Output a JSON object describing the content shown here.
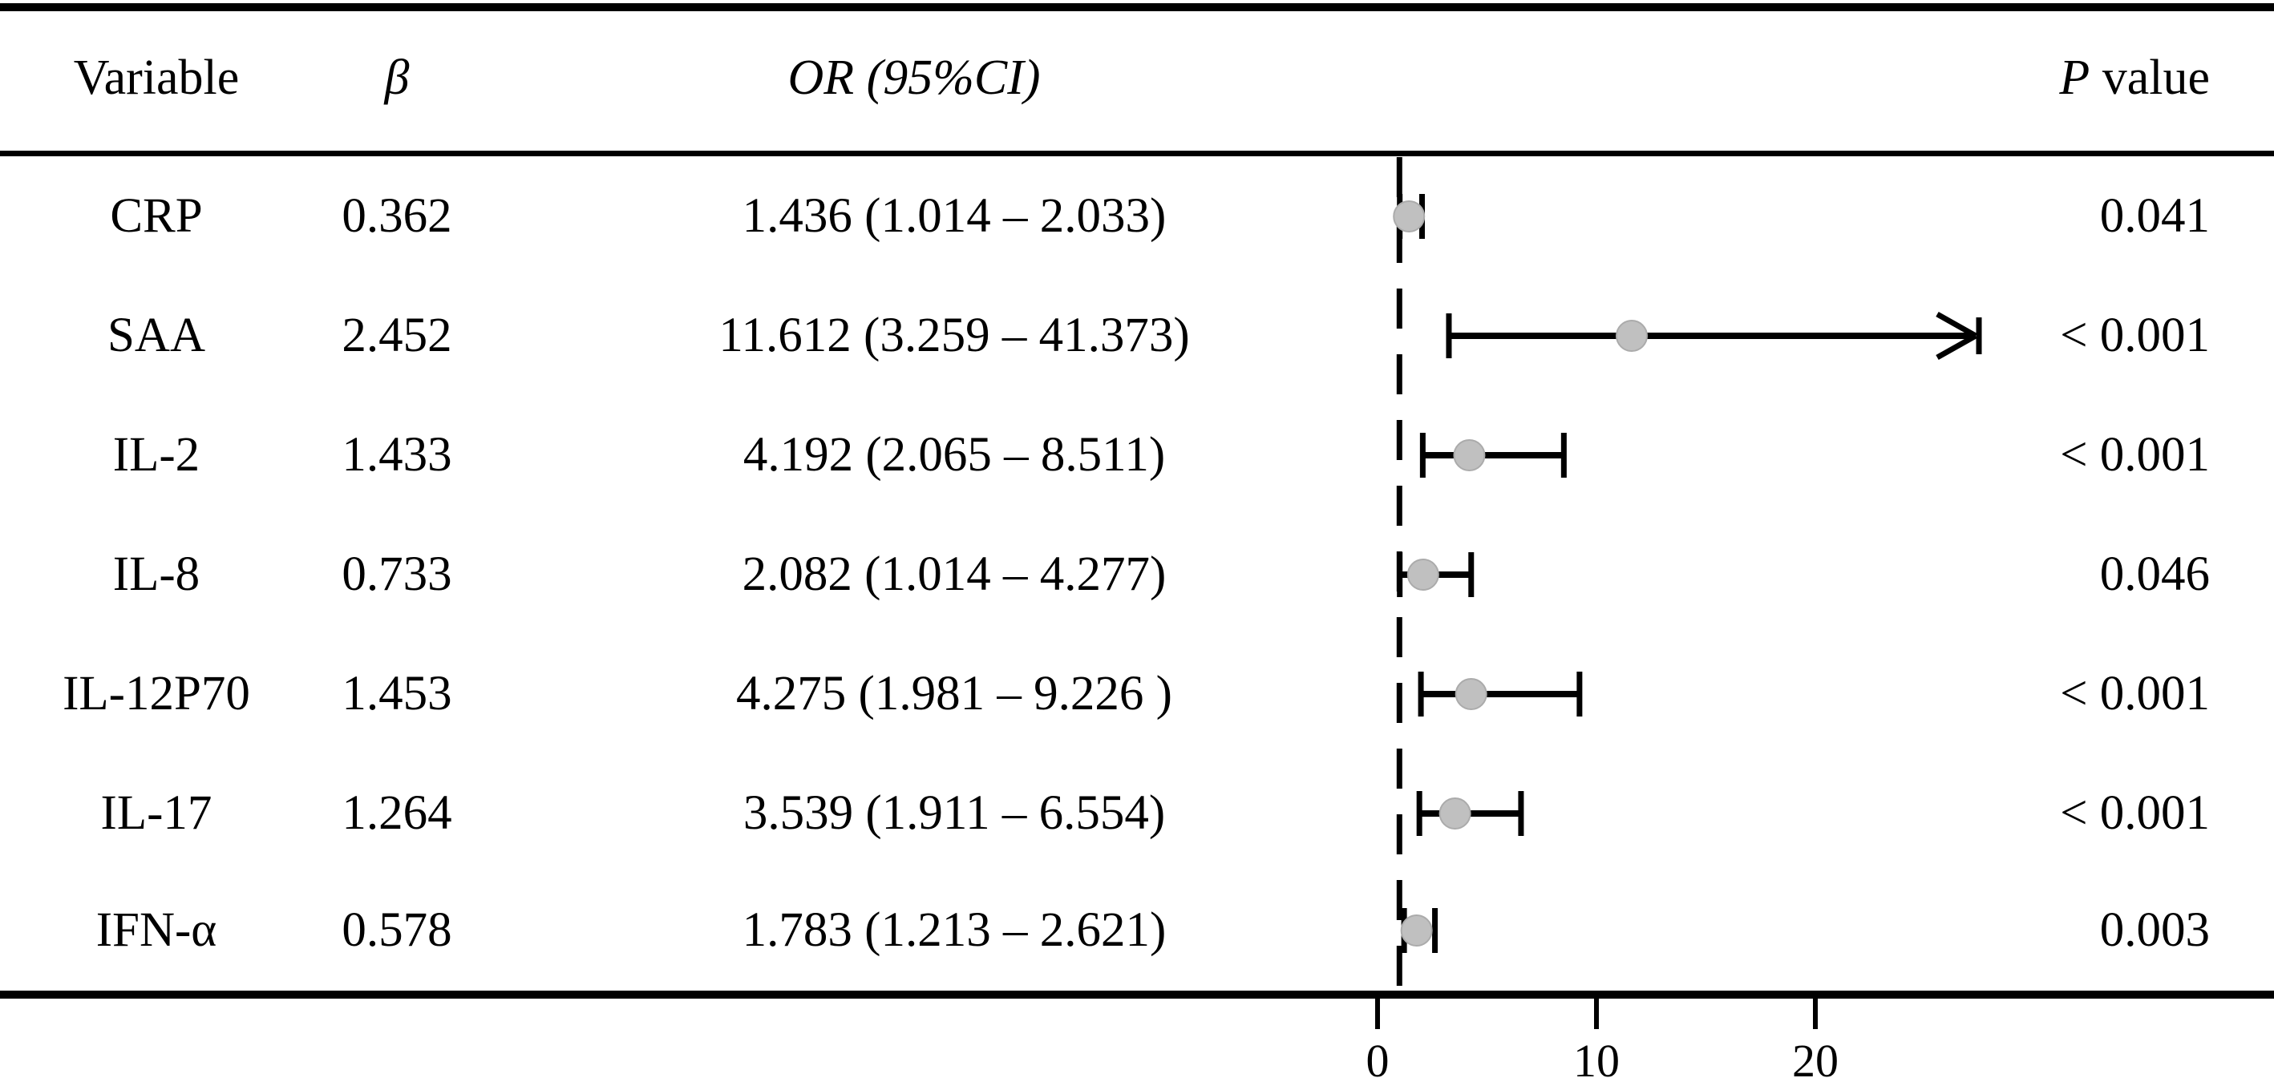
{
  "header": {
    "variable": "Variable",
    "beta": "β",
    "or": "OR (95%CI)",
    "p_italic": "P",
    "p_rest": " value"
  },
  "table": {
    "rows": [
      {
        "variable": "CRP",
        "beta": "0.362",
        "or_ci": "1.436 (1.014 – 2.033)",
        "p": "0.041"
      },
      {
        "variable": "SAA",
        "beta": "2.452",
        "or_ci": "11.612 (3.259 – 41.373)",
        "p": "< 0.001"
      },
      {
        "variable": "IL-2",
        "beta": "1.433",
        "or_ci": "4.192 (2.065 – 8.511)",
        "p": "< 0.001"
      },
      {
        "variable": "IL-8",
        "beta": "0.733",
        "or_ci": "2.082 (1.014 – 4.277)",
        "p": "0.046"
      },
      {
        "variable": "IL-12P70",
        "beta": "1.453",
        "or_ci": "4.275 (1.981 – 9.226 )",
        "p": "< 0.001"
      },
      {
        "variable": "IL-17",
        "beta": "1.264",
        "or_ci": "3.539 (1.911 – 6.554)",
        "p": "< 0.001"
      },
      {
        "variable": "IFN-α",
        "beta": "0.578",
        "or_ci": "1.783 (1.213 – 2.621)",
        "p": "0.003"
      }
    ]
  },
  "chart_data": {
    "type": "forest",
    "title": "",
    "xlabel": "",
    "categories": [
      "CRP",
      "SAA",
      "IL-2",
      "IL-8",
      "IL-12P70",
      "IL-17",
      "IFN-α"
    ],
    "beta": [
      0.362,
      2.452,
      1.433,
      0.733,
      1.453,
      1.264,
      0.578
    ],
    "or": [
      1.436,
      11.612,
      4.192,
      2.082,
      4.275,
      3.539,
      1.783
    ],
    "ci_low": [
      1.014,
      3.259,
      2.065,
      1.014,
      1.981,
      1.911,
      1.213
    ],
    "ci_high": [
      2.033,
      41.373,
      8.511,
      4.277,
      9.226,
      6.554,
      2.621
    ],
    "p_values": [
      "0.041",
      "< 0.001",
      "< 0.001",
      "0.046",
      "< 0.001",
      "< 0.001",
      "0.003"
    ],
    "ref_line": 1,
    "x_ticks": [
      0,
      10,
      20
    ],
    "x_tick_labels": [
      "0",
      "10",
      "20"
    ],
    "xlim": [
      0,
      28
    ],
    "clamp_note": "SAA upper CI extends beyond axis; drawn as right arrow",
    "grid": false,
    "legend": false
  },
  "colors": {
    "marker_fill": "#c0c0c0",
    "marker_stroke": "#ababab",
    "line": "#000000",
    "text": "#000000"
  }
}
